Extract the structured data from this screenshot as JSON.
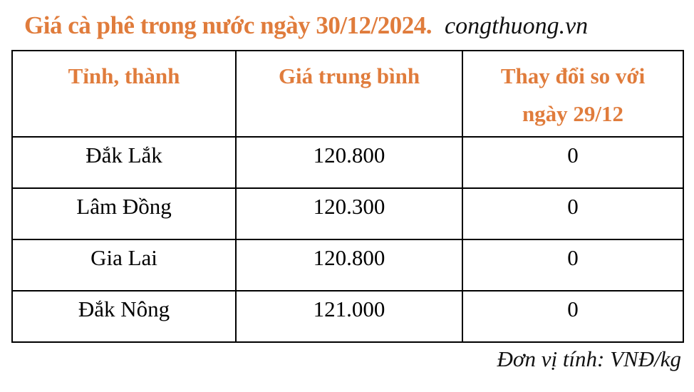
{
  "title": {
    "main": "Giá cà phê trong nước ngày 30/12/2024.",
    "brand": "congthuong.vn"
  },
  "table": {
    "headers": [
      "Tỉnh, thành",
      "Giá trung bình",
      "Thay đổi so với ngày 29/12"
    ],
    "rows": [
      {
        "province": "Đắk Lắk",
        "price": "120.800",
        "change": "0"
      },
      {
        "province": "Lâm Đồng",
        "price": "120.300",
        "change": "0"
      },
      {
        "province": "Gia Lai",
        "price": "120.800",
        "change": "0"
      },
      {
        "province": "Đắk Nông",
        "price": "121.000",
        "change": "0"
      }
    ]
  },
  "footer": {
    "unit_label": "Đơn vị tính: VNĐ/kg"
  },
  "colors": {
    "accent_orange": "#E07C3C",
    "text_black": "#000000",
    "border_black": "#000000",
    "background": "#FFFFFF"
  },
  "chart_data": {
    "type": "table",
    "title": "Giá cà phê trong nước ngày 30/12/2024",
    "source": "congthuong.vn",
    "columns": [
      "Tỉnh, thành",
      "Giá trung bình",
      "Thay đổi so với ngày 29/12"
    ],
    "rows": [
      [
        "Đắk Lắk",
        120800,
        0
      ],
      [
        "Lâm Đồng",
        120300,
        0
      ],
      [
        "Gia Lai",
        120800,
        0
      ],
      [
        "Đắk Nông",
        121000,
        0
      ]
    ],
    "unit": "VNĐ/kg"
  }
}
